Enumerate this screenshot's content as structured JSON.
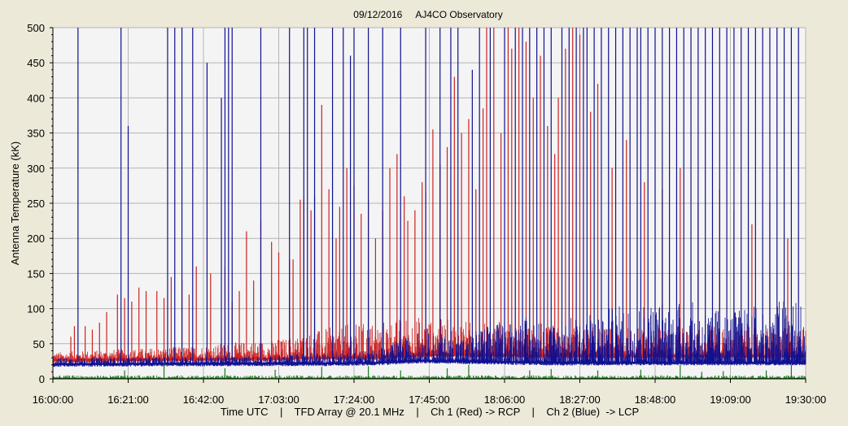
{
  "chart_data": {
    "type": "line",
    "title": "09/12/2016     AJ4CO Observatory",
    "ylabel": "Antenna Temperature (kK)",
    "xlabel": "Time UTC    |    TFD Array @ 20.1 MHz    |    Ch 1 (Red) -> RCP    |    Ch 2 (Blue)  -> LCP",
    "ylim": [
      0,
      500
    ],
    "yticks": [
      0,
      50,
      100,
      150,
      200,
      250,
      300,
      350,
      400,
      450,
      500
    ],
    "x_range_minutes": [
      0,
      210
    ],
    "xticks": [
      "16:00:00",
      "16:21:00",
      "16:42:00",
      "17:03:00",
      "17:24:00",
      "17:45:00",
      "18:06:00",
      "18:27:00",
      "18:48:00",
      "19:09:00",
      "19:30:00"
    ],
    "grid": true,
    "background_color": "#f4f4f4",
    "grid_color": "#b4b4b4",
    "series": [
      {
        "name": "Ch 1 (Red) -> RCP",
        "color": "#cc2222",
        "baseline": [
          [
            0,
            28
          ],
          [
            60,
            30
          ],
          [
            90,
            32
          ],
          [
            105,
            36
          ],
          [
            140,
            34
          ],
          [
            210,
            34
          ]
        ],
        "noise_envelope": [
          [
            0,
            10
          ],
          [
            40,
            18
          ],
          [
            65,
            28
          ],
          [
            80,
            45
          ],
          [
            100,
            55
          ],
          [
            130,
            40
          ],
          [
            210,
            40
          ]
        ],
        "spikes": [
          [
            5,
            60
          ],
          [
            6,
            75
          ],
          [
            9,
            75
          ],
          [
            11,
            70
          ],
          [
            13,
            80
          ],
          [
            15,
            95
          ],
          [
            18,
            120
          ],
          [
            20,
            115
          ],
          [
            22,
            110
          ],
          [
            24,
            130
          ],
          [
            26,
            125
          ],
          [
            29,
            125
          ],
          [
            31,
            115
          ],
          [
            33,
            145
          ],
          [
            36,
            140
          ],
          [
            38,
            120
          ],
          [
            40,
            160
          ],
          [
            44,
            150
          ],
          [
            48,
            160
          ],
          [
            50,
            110
          ],
          [
            52,
            125
          ],
          [
            54,
            210
          ],
          [
            56,
            140
          ],
          [
            58,
            225
          ],
          [
            61,
            195
          ],
          [
            63,
            180
          ],
          [
            66,
            170
          ],
          [
            67,
            170
          ],
          [
            69,
            255
          ],
          [
            70,
            255
          ],
          [
            72,
            240
          ],
          [
            73,
            260
          ],
          [
            75,
            390
          ],
          [
            77,
            270
          ],
          [
            79,
            200
          ],
          [
            80,
            245
          ],
          [
            82,
            300
          ],
          [
            84,
            275
          ],
          [
            86,
            235
          ],
          [
            88,
            255
          ],
          [
            90,
            200
          ],
          [
            92,
            240
          ],
          [
            94,
            300
          ],
          [
            96,
            320
          ],
          [
            98,
            260
          ],
          [
            99,
            225
          ],
          [
            101,
            240
          ],
          [
            103,
            280
          ],
          [
            104,
            265
          ],
          [
            106,
            355
          ],
          [
            108,
            305
          ],
          [
            110,
            330
          ],
          [
            112,
            430
          ],
          [
            114,
            350
          ],
          [
            116,
            370
          ],
          [
            118,
            270
          ],
          [
            120,
            385
          ],
          [
            121,
            500
          ],
          [
            123,
            500
          ],
          [
            125,
            350
          ],
          [
            127,
            500
          ],
          [
            128,
            470
          ],
          [
            130,
            500
          ],
          [
            132,
            480
          ],
          [
            134,
            400
          ],
          [
            136,
            460
          ],
          [
            138,
            360
          ],
          [
            140,
            320
          ],
          [
            141,
            400
          ],
          [
            143,
            470
          ],
          [
            145,
            500
          ],
          [
            147,
            490
          ],
          [
            150,
            380
          ],
          [
            152,
            420
          ],
          [
            156,
            300
          ],
          [
            160,
            340
          ],
          [
            165,
            280
          ],
          [
            170,
            270
          ],
          [
            175,
            300
          ],
          [
            180,
            250
          ],
          [
            186,
            270
          ],
          [
            190,
            240
          ],
          [
            195,
            220
          ],
          [
            200,
            250
          ],
          [
            205,
            200
          ]
        ]
      },
      {
        "name": "Ch 2 (Blue)  -> LCP",
        "color": "#101090",
        "baseline": [
          [
            0,
            22
          ],
          [
            60,
            23
          ],
          [
            75,
            23
          ],
          [
            90,
            24
          ],
          [
            102,
            27
          ],
          [
            115,
            26
          ],
          [
            140,
            24
          ],
          [
            170,
            24
          ],
          [
            210,
            24
          ]
        ],
        "noise_envelope": [
          [
            0,
            8
          ],
          [
            60,
            10
          ],
          [
            70,
            14
          ],
          [
            80,
            15
          ],
          [
            90,
            18
          ],
          [
            102,
            40
          ],
          [
            115,
            35
          ],
          [
            120,
            50
          ],
          [
            130,
            65
          ],
          [
            140,
            60
          ],
          [
            150,
            70
          ],
          [
            160,
            85
          ],
          [
            170,
            90
          ],
          [
            180,
            85
          ],
          [
            190,
            75
          ],
          [
            200,
            85
          ],
          [
            205,
            95
          ],
          [
            210,
            90
          ]
        ],
        "spikes": [
          [
            7,
            500
          ],
          [
            19,
            500
          ],
          [
            21,
            360
          ],
          [
            32,
            500
          ],
          [
            34,
            500
          ],
          [
            36,
            500
          ],
          [
            39,
            500
          ],
          [
            43,
            450
          ],
          [
            47,
            400
          ],
          [
            48,
            500
          ],
          [
            49,
            500
          ],
          [
            50,
            500
          ],
          [
            58,
            500
          ],
          [
            66,
            500
          ],
          [
            70,
            500
          ],
          [
            71,
            500
          ],
          [
            73,
            500
          ],
          [
            78,
            500
          ],
          [
            81,
            500
          ],
          [
            83,
            460
          ],
          [
            84,
            500
          ],
          [
            88,
            500
          ],
          [
            92,
            500
          ],
          [
            97,
            500
          ],
          [
            104,
            500
          ],
          [
            108,
            500
          ],
          [
            111,
            500
          ],
          [
            113,
            500
          ],
          [
            117,
            440
          ],
          [
            119,
            500
          ],
          [
            122,
            500
          ],
          [
            126,
            500
          ],
          [
            129,
            500
          ],
          [
            131,
            500
          ],
          [
            133,
            500
          ],
          [
            135,
            500
          ],
          [
            137,
            500
          ],
          [
            139,
            500
          ],
          [
            142,
            500
          ],
          [
            144,
            500
          ],
          [
            146,
            500
          ],
          [
            148,
            500
          ],
          [
            149,
            500
          ],
          [
            151,
            500
          ],
          [
            153,
            500
          ],
          [
            155,
            500
          ],
          [
            157,
            500
          ],
          [
            159,
            500
          ],
          [
            161,
            500
          ],
          [
            163,
            500
          ],
          [
            164,
            500
          ],
          [
            166,
            500
          ],
          [
            168,
            500
          ],
          [
            170,
            500
          ],
          [
            172,
            500
          ],
          [
            174,
            500
          ],
          [
            176,
            500
          ],
          [
            178,
            500
          ],
          [
            180,
            500
          ],
          [
            182,
            500
          ],
          [
            184,
            500
          ],
          [
            186,
            500
          ],
          [
            188,
            500
          ],
          [
            190,
            500
          ],
          [
            192,
            500
          ],
          [
            194,
            500
          ],
          [
            196,
            500
          ],
          [
            198,
            500
          ],
          [
            200,
            500
          ],
          [
            202,
            500
          ],
          [
            204,
            500
          ],
          [
            206,
            500
          ],
          [
            208,
            500
          ]
        ]
      },
      {
        "name": "Ch 3 (Green)",
        "color": "#1a7a1a",
        "baseline": [
          [
            0,
            1
          ],
          [
            210,
            1
          ]
        ],
        "noise_envelope": [
          [
            0,
            4
          ],
          [
            210,
            4
          ]
        ],
        "spikes": [
          [
            20,
            12
          ],
          [
            31,
            22
          ],
          [
            48,
            15
          ],
          [
            62,
            13
          ],
          [
            75,
            17
          ],
          [
            88,
            18
          ],
          [
            97,
            12
          ],
          [
            110,
            15
          ],
          [
            116,
            20
          ],
          [
            133,
            12
          ],
          [
            139,
            14
          ],
          [
            152,
            12
          ],
          [
            164,
            13
          ],
          [
            175,
            20
          ],
          [
            181,
            10
          ],
          [
            187,
            11
          ],
          [
            199,
            12
          ],
          [
            206,
            20
          ]
        ]
      }
    ]
  }
}
